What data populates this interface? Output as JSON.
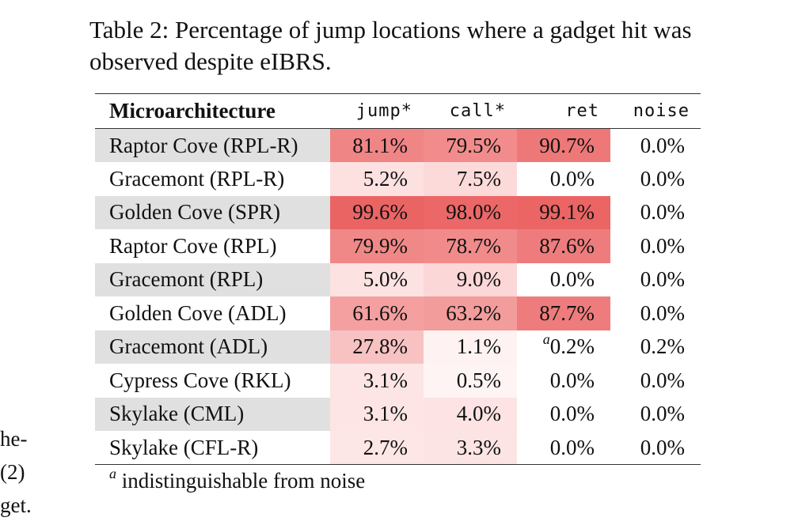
{
  "caption": {
    "line1": "Table 2: Percentage of jump locations where a gadget hit was",
    "line2": "observed despite eIBRS."
  },
  "table": {
    "headers": [
      "Microarchitecture",
      "jump*",
      "call*",
      "ret",
      "noise"
    ],
    "rows": [
      {
        "arch": "Raptor Cove (RPL-R)",
        "jump": "81.1%",
        "call": "79.5%",
        "ret": "90.7%",
        "noise": "0.0%",
        "jump_bg": "#f08585",
        "call_bg": "#f28c8c",
        "ret_bg": "#ee7878"
      },
      {
        "arch": "Gracemont (RPL-R)",
        "jump": "5.2%",
        "call": "7.5%",
        "ret": "0.0%",
        "noise": "0.0%",
        "jump_bg": "#fde1e1",
        "call_bg": "#fcdada",
        "ret_bg": "#ffffff"
      },
      {
        "arch": "Golden Cove (SPR)",
        "jump": "99.6%",
        "call": "98.0%",
        "ret": "99.1%",
        "noise": "0.0%",
        "jump_bg": "#eb6464",
        "call_bg": "#ec6767",
        "ret_bg": "#eb6565"
      },
      {
        "arch": "Raptor Cove (RPL)",
        "jump": "79.9%",
        "call": "78.7%",
        "ret": "87.6%",
        "noise": "0.0%",
        "jump_bg": "#f08888",
        "call_bg": "#f18b8b",
        "ret_bg": "#ef7c7c"
      },
      {
        "arch": "Gracemont (RPL)",
        "jump": "5.0%",
        "call": "9.0%",
        "ret": "0.0%",
        "noise": "0.0%",
        "jump_bg": "#fde2e2",
        "call_bg": "#fcd7d7",
        "ret_bg": "#ffffff"
      },
      {
        "arch": "Golden Cove (ADL)",
        "jump": "61.6%",
        "call": "63.2%",
        "ret": "87.7%",
        "noise": "0.0%",
        "jump_bg": "#f4a0a0",
        "call_bg": "#f39c9c",
        "ret_bg": "#ef7c7c"
      },
      {
        "arch": "Gracemont (ADL)",
        "jump": "27.8%",
        "call": "1.1%",
        "ret": "0.2%",
        "ret_sup": "a",
        "noise": "0.2%",
        "jump_bg": "#f8c2c2",
        "call_bg": "#fef2f2",
        "ret_bg": "#ffffff"
      },
      {
        "arch": "Cypress Cove (RKL)",
        "jump": "3.1%",
        "call": "0.5%",
        "ret": "0.0%",
        "noise": "0.0%",
        "jump_bg": "#fde5e5",
        "call_bg": "#fef4f4",
        "ret_bg": "#ffffff"
      },
      {
        "arch": "Skylake (CML)",
        "jump": "3.1%",
        "call": "4.0%",
        "ret": "0.0%",
        "noise": "0.0%",
        "jump_bg": "#fde5e5",
        "call_bg": "#fde3e3",
        "ret_bg": "#ffffff"
      },
      {
        "arch": "Skylake (CFL-R)",
        "jump": "2.7%",
        "call": "3.3%",
        "ret": "0.0%",
        "noise": "0.0%",
        "jump_bg": "#fde6e6",
        "call_bg": "#fde4e4",
        "ret_bg": "#ffffff"
      }
    ],
    "shaded_rows": [
      0,
      2,
      4,
      6,
      8
    ]
  },
  "footnote": {
    "marker": "a",
    "text": "indistinguishable from noise"
  },
  "left_fragments": [
    "he-",
    "(2)",
    "get."
  ]
}
